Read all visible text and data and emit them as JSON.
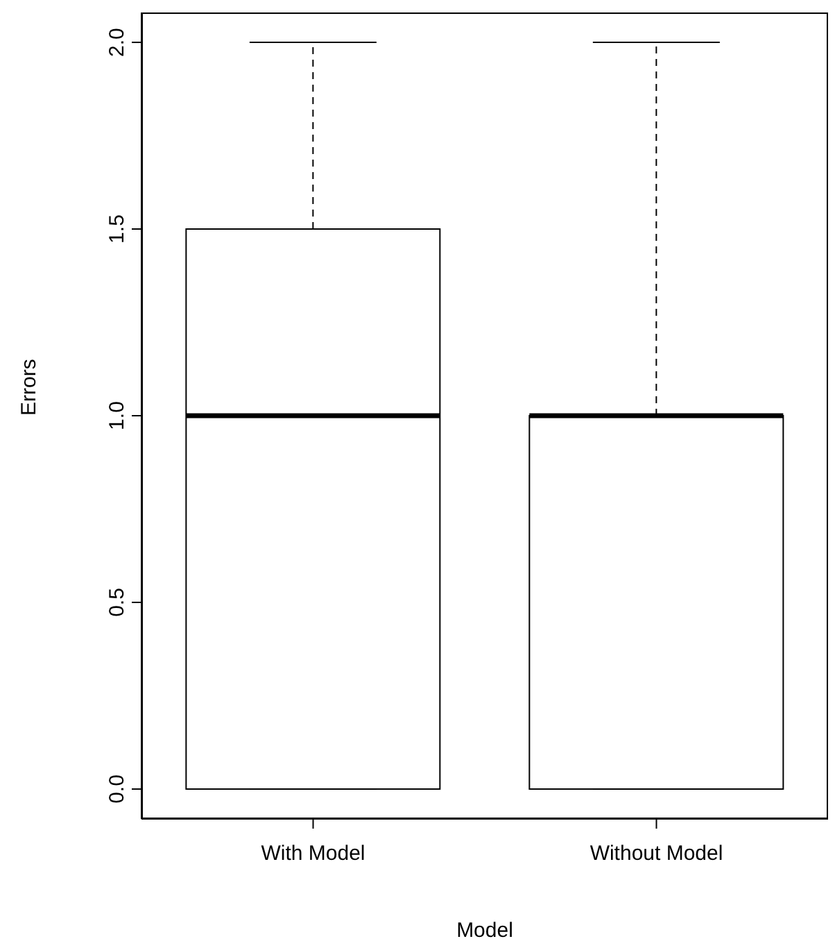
{
  "chart_data": {
    "type": "box",
    "xlabel": "Model",
    "ylabel": "Errors",
    "categories": [
      "With Model",
      "Without Model"
    ],
    "boxes": [
      {
        "low": 0,
        "q1": 0,
        "median": 1,
        "q3": 1.5,
        "high": 2
      },
      {
        "low": 0,
        "q1": 0,
        "median": 1,
        "q3": 1,
        "high": 2
      }
    ],
    "ylim": [
      -0.08,
      2.08
    ],
    "yticks": [
      {
        "value": 0,
        "label": "0.0"
      },
      {
        "value": 0.5,
        "label": "0.5"
      },
      {
        "value": 1,
        "label": "1.0"
      },
      {
        "value": 1.5,
        "label": "1.5"
      },
      {
        "value": 2,
        "label": "2.0"
      }
    ],
    "grid": false,
    "legend": false
  }
}
